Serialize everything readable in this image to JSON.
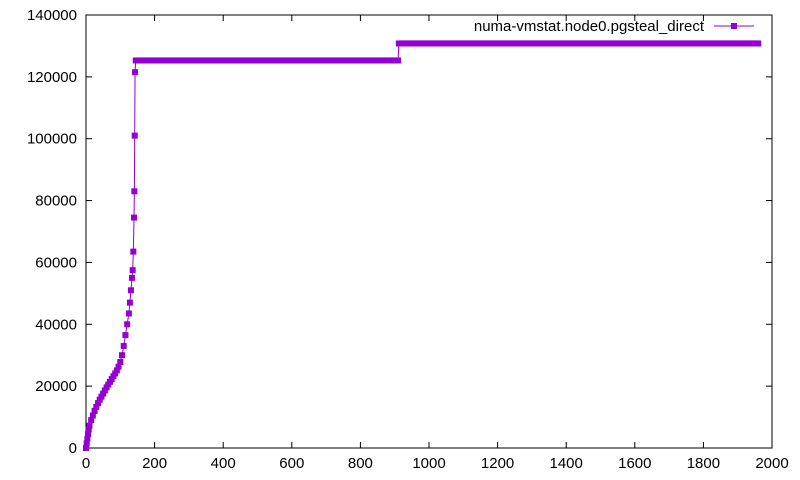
{
  "chart_data": {
    "type": "line",
    "title": "",
    "xlabel": "",
    "ylabel": "",
    "xlim": [
      0,
      2000
    ],
    "ylim": [
      0,
      140000
    ],
    "x_ticks": [
      0,
      200,
      400,
      600,
      800,
      1000,
      1200,
      1400,
      1600,
      1800,
      2000
    ],
    "y_ticks": [
      0,
      20000,
      40000,
      60000,
      80000,
      100000,
      120000,
      140000
    ],
    "grid": false,
    "legend_position": "top-right",
    "series": [
      {
        "name": "numa-vmstat.node0.pgsteal_direct",
        "color": "#9400d3",
        "marker": "square",
        "points": [
          [
            0,
            0
          ],
          [
            2,
            1500
          ],
          [
            4,
            3000
          ],
          [
            6,
            4500
          ],
          [
            8,
            6000
          ],
          [
            10,
            7200
          ],
          [
            15,
            9000
          ],
          [
            20,
            10500
          ],
          [
            25,
            12000
          ],
          [
            30,
            13300
          ],
          [
            35,
            14500
          ],
          [
            40,
            15600
          ],
          [
            45,
            16600
          ],
          [
            50,
            17600
          ],
          [
            55,
            18600
          ],
          [
            60,
            19600
          ],
          [
            65,
            20500
          ],
          [
            70,
            21400
          ],
          [
            75,
            22300
          ],
          [
            80,
            23200
          ],
          [
            85,
            24100
          ],
          [
            90,
            25100
          ],
          [
            95,
            26300
          ],
          [
            100,
            27800
          ],
          [
            105,
            30000
          ],
          [
            110,
            33000
          ],
          [
            115,
            36500
          ],
          [
            120,
            40000
          ],
          [
            125,
            43500
          ],
          [
            128,
            47000
          ],
          [
            131,
            51000
          ],
          [
            134,
            55000
          ],
          [
            136,
            57500
          ],
          [
            138,
            63500
          ],
          [
            140,
            74500
          ],
          [
            141,
            83000
          ],
          [
            142,
            101000
          ],
          [
            143,
            121500
          ],
          [
            145,
            125300
          ],
          [
            200,
            125300
          ],
          [
            300,
            125300
          ],
          [
            400,
            125300
          ],
          [
            500,
            125300
          ],
          [
            600,
            125300
          ],
          [
            700,
            125300
          ],
          [
            800,
            125300
          ],
          [
            900,
            125300
          ],
          [
            910,
            125300
          ],
          [
            912,
            130800
          ],
          [
            1000,
            130800
          ],
          [
            1100,
            130800
          ],
          [
            1200,
            130800
          ],
          [
            1300,
            130800
          ],
          [
            1400,
            130800
          ],
          [
            1500,
            130800
          ],
          [
            1600,
            130800
          ],
          [
            1700,
            130800
          ],
          [
            1800,
            130800
          ],
          [
            1900,
            130800
          ],
          [
            1960,
            130800
          ]
        ]
      }
    ]
  }
}
